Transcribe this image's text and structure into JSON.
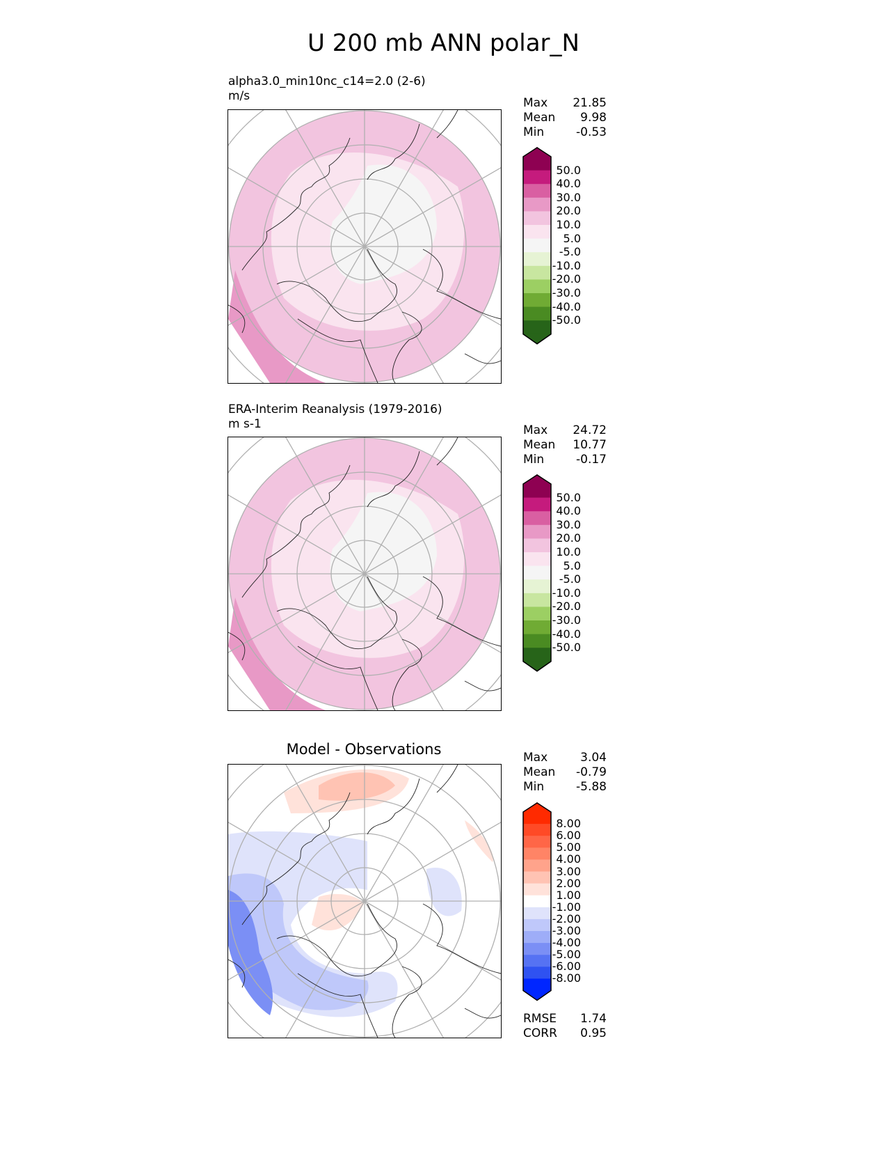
{
  "title": "U 200 mb ANN polar_N",
  "panels": [
    {
      "title": "alpha3.0_min10nc_c14=2.0 (2-6)",
      "units": "m/s",
      "stats": [
        {
          "label": "Max",
          "value": "21.85"
        },
        {
          "label": "Mean",
          "value": "9.98"
        },
        {
          "label": "Min",
          "value": "-0.53"
        }
      ]
    },
    {
      "title": "ERA-Interim Reanalysis (1979-2016)",
      "units": "m s-1",
      "stats": [
        {
          "label": "Max",
          "value": "24.72"
        },
        {
          "label": "Mean",
          "value": "10.77"
        },
        {
          "label": "Min",
          "value": "-0.17"
        }
      ]
    },
    {
      "title": "Model - Observations",
      "units": "",
      "stats": [
        {
          "label": "Max",
          "value": "3.04"
        },
        {
          "label": "Mean",
          "value": "-0.79"
        },
        {
          "label": "Min",
          "value": "-5.88"
        }
      ],
      "metrics": [
        {
          "label": "RMSE",
          "value": "1.74"
        },
        {
          "label": "CORR",
          "value": "0.95"
        }
      ]
    }
  ],
  "colorbar_main": {
    "labels": [
      "50.0",
      "40.0",
      "30.0",
      "20.0",
      "10.0",
      "5.0",
      "-5.0",
      "-10.0",
      "-20.0",
      "-30.0",
      "-40.0",
      "-50.0"
    ],
    "colors": [
      "#8e0152",
      "#c51b7d",
      "#d95fa2",
      "#e899c6",
      "#f2c4df",
      "#fae4ef",
      "#f5f5f5",
      "#e6f3d4",
      "#c8e6a0",
      "#9ccf63",
      "#70ab34",
      "#4a8b22",
      "#276419"
    ]
  },
  "colorbar_diff": {
    "labels": [
      "8.00",
      "6.00",
      "5.00",
      "4.00",
      "3.00",
      "2.00",
      "1.00",
      "-1.00",
      "-2.00",
      "-3.00",
      "-4.00",
      "-5.00",
      "-6.00",
      "-8.00"
    ],
    "colors": [
      "#ff2a00",
      "#ff4a26",
      "#ff6647",
      "#ff8466",
      "#ffa38b",
      "#ffc3b3",
      "#ffe2da",
      "#ffffff",
      "#dfe3fb",
      "#bfc8fa",
      "#9eadf8",
      "#7b8ff5",
      "#5672f3",
      "#2f52f1",
      "#0026ff"
    ]
  }
}
